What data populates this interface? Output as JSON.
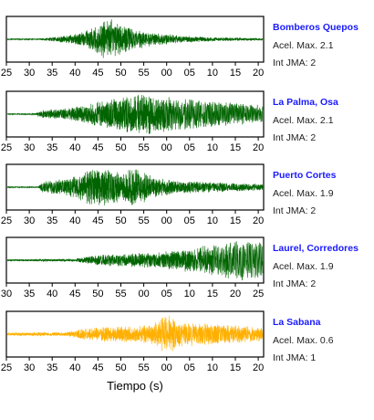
{
  "chart_data": {
    "type": "line",
    "xlabel": "Tiempo (s)",
    "panels": [
      {
        "station": "Bomberos Quepos",
        "accel_label": "Acel. Max. 2.1",
        "jma_label": "Int JMA: 2",
        "color": "#006400",
        "tick_labels": [
          "25",
          "30",
          "35",
          "40",
          "45",
          "50",
          "55",
          "00",
          "05",
          "10",
          "15",
          "20"
        ],
        "tick_offset": 0,
        "envelope": [
          {
            "x": 25,
            "amp": 0.02
          },
          {
            "x": 32,
            "amp": 0.03
          },
          {
            "x": 35,
            "amp": 0.1
          },
          {
            "x": 40,
            "amp": 0.25
          },
          {
            "x": 44,
            "amp": 0.55
          },
          {
            "x": 46,
            "amp": 0.9
          },
          {
            "x": 48,
            "amp": 1.0
          },
          {
            "x": 50,
            "amp": 0.7
          },
          {
            "x": 54,
            "amp": 0.45
          },
          {
            "x": 58,
            "amp": 0.3
          },
          {
            "x": 63,
            "amp": 0.18
          },
          {
            "x": 70,
            "amp": 0.1
          },
          {
            "x": 80,
            "amp": 0.06
          },
          {
            "x": 84,
            "amp": 0.04
          }
        ]
      },
      {
        "station": "La Palma, Osa",
        "accel_label": "Acel. Max. 2.1",
        "jma_label": "Int JMA: 2",
        "color": "#006400",
        "tick_labels": [
          "25",
          "30",
          "35",
          "40",
          "45",
          "50",
          "55",
          "00",
          "05",
          "10",
          "15",
          "20"
        ],
        "tick_offset": 0,
        "envelope": [
          {
            "x": 25,
            "amp": 0.02
          },
          {
            "x": 31,
            "amp": 0.03
          },
          {
            "x": 33,
            "amp": 0.2
          },
          {
            "x": 38,
            "amp": 0.3
          },
          {
            "x": 42,
            "amp": 0.45
          },
          {
            "x": 47,
            "amp": 0.7
          },
          {
            "x": 51,
            "amp": 0.9
          },
          {
            "x": 55,
            "amp": 1.0
          },
          {
            "x": 60,
            "amp": 0.85
          },
          {
            "x": 66,
            "amp": 0.7
          },
          {
            "x": 72,
            "amp": 0.6
          },
          {
            "x": 78,
            "amp": 0.5
          },
          {
            "x": 84,
            "amp": 0.35
          }
        ]
      },
      {
        "station": "Puerto Cortes",
        "accel_label": "Acel. Max. 1.9",
        "jma_label": "Int JMA: 2",
        "color": "#006400",
        "tick_labels": [
          "25",
          "30",
          "35",
          "40",
          "45",
          "50",
          "55",
          "00",
          "05",
          "10",
          "15",
          "20"
        ],
        "tick_offset": 0,
        "envelope": [
          {
            "x": 25,
            "amp": 0.02
          },
          {
            "x": 32,
            "amp": 0.03
          },
          {
            "x": 33,
            "amp": 0.3
          },
          {
            "x": 38,
            "amp": 0.4
          },
          {
            "x": 42,
            "amp": 0.7
          },
          {
            "x": 44,
            "amp": 1.0
          },
          {
            "x": 47,
            "amp": 0.85
          },
          {
            "x": 50,
            "amp": 0.8
          },
          {
            "x": 54,
            "amp": 0.9
          },
          {
            "x": 57,
            "amp": 0.5
          },
          {
            "x": 62,
            "amp": 0.35
          },
          {
            "x": 70,
            "amp": 0.25
          },
          {
            "x": 78,
            "amp": 0.18
          },
          {
            "x": 84,
            "amp": 0.15
          }
        ]
      },
      {
        "station": "Laurel, Corredores",
        "accel_label": "Acel. Max. 1.9",
        "jma_label": "Int JMA: 2",
        "color": "#006400",
        "tick_labels": [
          "30",
          "35",
          "40",
          "45",
          "50",
          "55",
          "00",
          "05",
          "10",
          "15",
          "20",
          "25"
        ],
        "tick_offset": 5,
        "envelope": [
          {
            "x": 30,
            "amp": 0.05
          },
          {
            "x": 40,
            "amp": 0.07
          },
          {
            "x": 43,
            "amp": 0.2
          },
          {
            "x": 48,
            "amp": 0.3
          },
          {
            "x": 54,
            "amp": 0.35
          },
          {
            "x": 60,
            "amp": 0.45
          },
          {
            "x": 66,
            "amp": 0.6
          },
          {
            "x": 72,
            "amp": 0.85
          },
          {
            "x": 78,
            "amp": 1.0
          },
          {
            "x": 84,
            "amp": 0.8
          },
          {
            "x": 89,
            "amp": 0.6
          }
        ]
      },
      {
        "station": "La Sabana",
        "accel_label": "Acel. Max. 0.6",
        "jma_label": "Int JMA: 1",
        "color": "#ffb000",
        "tick_labels": [
          "25",
          "30",
          "35",
          "40",
          "45",
          "50",
          "55",
          "00",
          "05",
          "10",
          "15",
          "20"
        ],
        "tick_offset": 0,
        "envelope": [
          {
            "x": 25,
            "amp": 0.08
          },
          {
            "x": 38,
            "amp": 0.1
          },
          {
            "x": 41,
            "amp": 0.25
          },
          {
            "x": 46,
            "amp": 0.35
          },
          {
            "x": 52,
            "amp": 0.4
          },
          {
            "x": 57,
            "amp": 0.5
          },
          {
            "x": 60,
            "amp": 1.0
          },
          {
            "x": 63,
            "amp": 0.6
          },
          {
            "x": 68,
            "amp": 0.55
          },
          {
            "x": 74,
            "amp": 0.45
          },
          {
            "x": 80,
            "amp": 0.35
          },
          {
            "x": 84,
            "amp": 0.3
          }
        ]
      }
    ]
  }
}
